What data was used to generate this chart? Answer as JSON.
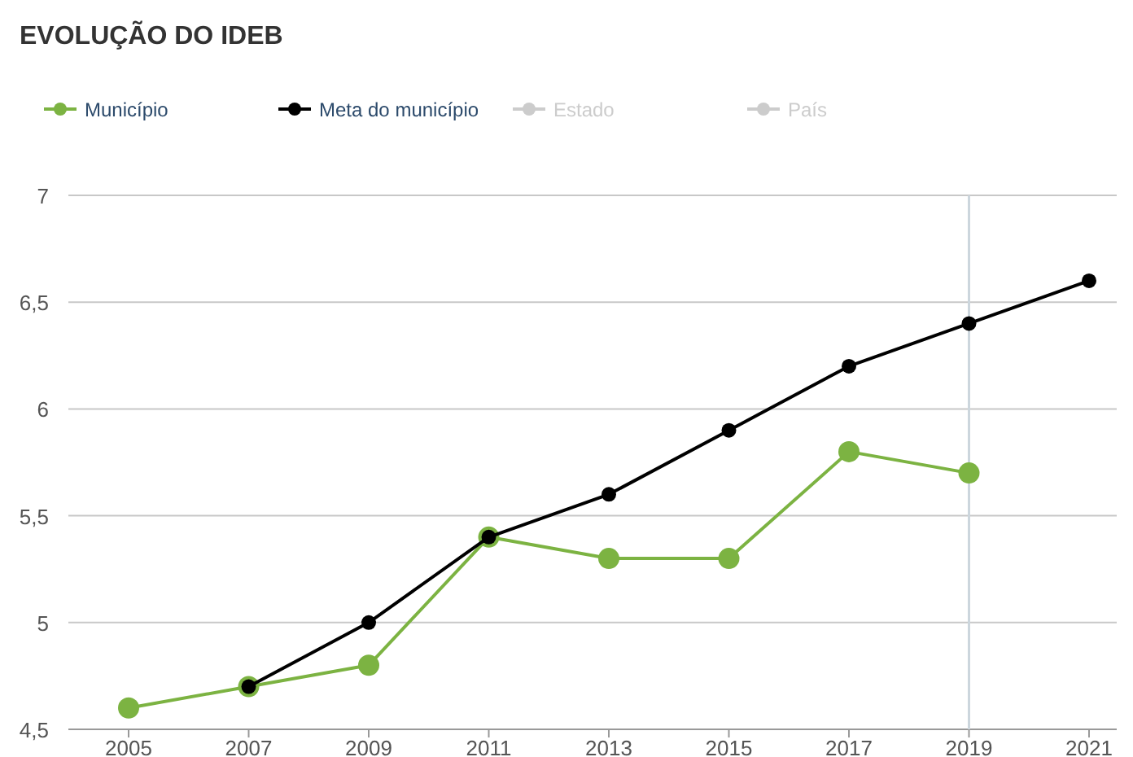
{
  "chart_data": {
    "type": "line",
    "title": "EVOLUÇÃO DO IDEB",
    "categories": [
      "2005",
      "2007",
      "2009",
      "2011",
      "2013",
      "2015",
      "2017",
      "2019",
      "2021"
    ],
    "series": [
      {
        "name": "Município",
        "color": "#7cb342",
        "values": [
          4.6,
          4.7,
          4.8,
          5.4,
          5.3,
          5.3,
          5.8,
          5.7,
          null
        ]
      },
      {
        "name": "Meta do município",
        "color": "#000000",
        "values": [
          null,
          4.7,
          5.0,
          5.4,
          5.6,
          5.9,
          6.2,
          6.4,
          6.6
        ]
      },
      {
        "name": "Estado",
        "color": "#cccccc",
        "values": [
          null,
          null,
          null,
          null,
          null,
          null,
          null,
          null,
          null
        ]
      },
      {
        "name": "País",
        "color": "#cccccc",
        "values": [
          null,
          null,
          null,
          null,
          null,
          null,
          null,
          null,
          null
        ]
      }
    ],
    "ylim": [
      4.5,
      7
    ],
    "yticks": [
      {
        "value": 4.5,
        "label": "4,5"
      },
      {
        "value": 5,
        "label": "5"
      },
      {
        "value": 5.5,
        "label": "5,5"
      },
      {
        "value": 6,
        "label": "6"
      },
      {
        "value": 6.5,
        "label": "6,5"
      },
      {
        "value": 7,
        "label": "7"
      }
    ],
    "ref_lines": [
      {
        "axis": "x",
        "value": "2019",
        "color": "#ccd6dd"
      }
    ],
    "grid": "y",
    "legend": "top left",
    "marker": "circle",
    "line_style": "solid"
  }
}
